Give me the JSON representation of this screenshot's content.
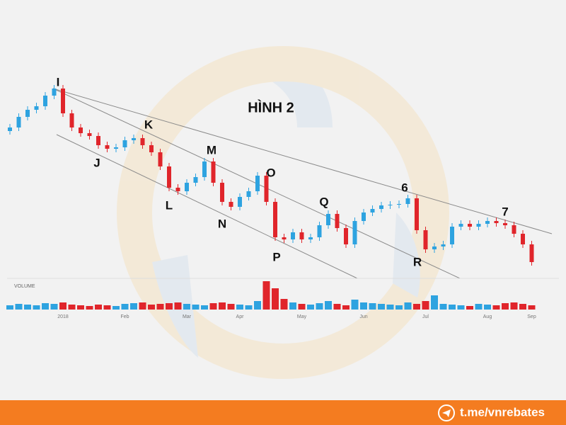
{
  "chart_data": {
    "type": "candlestick",
    "title": "HÌNH 2",
    "volume_label": "VOLUME",
    "footer": "t.me/vnrebates",
    "annotations": [
      "I",
      "J",
      "K",
      "L",
      "M",
      "N",
      "O",
      "P",
      "Q",
      "R",
      "6",
      "7"
    ],
    "categories": [
      null,
      null,
      null,
      null,
      null,
      null,
      "2018",
      null,
      null,
      null,
      null,
      null,
      null,
      "Feb",
      null,
      null,
      null,
      null,
      null,
      null,
      "Mar",
      null,
      null,
      null,
      null,
      null,
      "Apr",
      null,
      null,
      null,
      null,
      null,
      null,
      "May",
      null,
      null,
      null,
      null,
      null,
      null,
      "Jun",
      null,
      null,
      null,
      null,
      null,
      null,
      "Jul",
      null,
      null,
      null,
      null,
      null,
      null,
      "Aug",
      null,
      null,
      null,
      null,
      "Sep"
    ],
    "open": [
      215,
      220,
      235,
      245,
      250,
      265,
      275,
      240,
      220,
      212,
      208,
      195,
      190,
      192,
      202,
      205,
      195,
      185,
      165,
      135,
      130,
      142,
      150,
      172,
      142,
      115,
      108,
      122,
      130,
      152,
      115,
      65,
      62,
      72,
      62,
      65,
      82,
      98,
      78,
      55,
      88,
      100,
      105,
      110,
      111,
      112,
      120,
      75,
      48,
      52,
      55,
      80,
      84,
      80,
      84,
      88,
      85,
      82,
      70,
      55
    ],
    "high": [
      225,
      240,
      250,
      255,
      270,
      280,
      280,
      245,
      225,
      217,
      213,
      200,
      197,
      207,
      210,
      210,
      200,
      190,
      170,
      140,
      147,
      155,
      177,
      177,
      147,
      120,
      127,
      135,
      157,
      157,
      120,
      70,
      77,
      77,
      70,
      87,
      103,
      103,
      83,
      93,
      105,
      110,
      115,
      116,
      117,
      125,
      125,
      80,
      57,
      60,
      85,
      89,
      89,
      89,
      93,
      93,
      90,
      87,
      75,
      60
    ],
    "low": [
      210,
      215,
      230,
      240,
      245,
      260,
      235,
      215,
      207,
      203,
      190,
      185,
      185,
      187,
      197,
      190,
      180,
      160,
      130,
      125,
      125,
      137,
      145,
      137,
      110,
      103,
      103,
      117,
      125,
      110,
      60,
      57,
      57,
      57,
      57,
      60,
      77,
      73,
      50,
      50,
      83,
      95,
      100,
      105,
      106,
      107,
      70,
      43,
      43,
      47,
      50,
      75,
      75,
      75,
      79,
      80,
      77,
      65,
      50,
      25
    ],
    "close": [
      220,
      235,
      245,
      250,
      265,
      275,
      240,
      220,
      212,
      208,
      195,
      190,
      192,
      202,
      205,
      195,
      185,
      165,
      135,
      130,
      142,
      150,
      172,
      142,
      115,
      108,
      122,
      130,
      152,
      115,
      65,
      62,
      72,
      62,
      65,
      82,
      98,
      78,
      55,
      88,
      100,
      105,
      110,
      111,
      112,
      120,
      75,
      48,
      52,
      55,
      80,
      84,
      80,
      84,
      88,
      85,
      82,
      70,
      55,
      30
    ],
    "volume": [
      6,
      8,
      7,
      6,
      9,
      8,
      10,
      7,
      6,
      5,
      7,
      6,
      5,
      8,
      9,
      10,
      7,
      8,
      9,
      10,
      8,
      7,
      6,
      9,
      10,
      8,
      7,
      6,
      12,
      40,
      30,
      15,
      10,
      8,
      7,
      9,
      12,
      8,
      6,
      14,
      10,
      9,
      8,
      7,
      6,
      10,
      8,
      12,
      20,
      8,
      7,
      6,
      5,
      8,
      7,
      6,
      9,
      10,
      8,
      6
    ],
    "ylim": [
      0,
      300
    ],
    "volume_ylim": [
      0,
      40
    ],
    "up_color": "#2ea3e0",
    "down_color": "#e0252b"
  }
}
